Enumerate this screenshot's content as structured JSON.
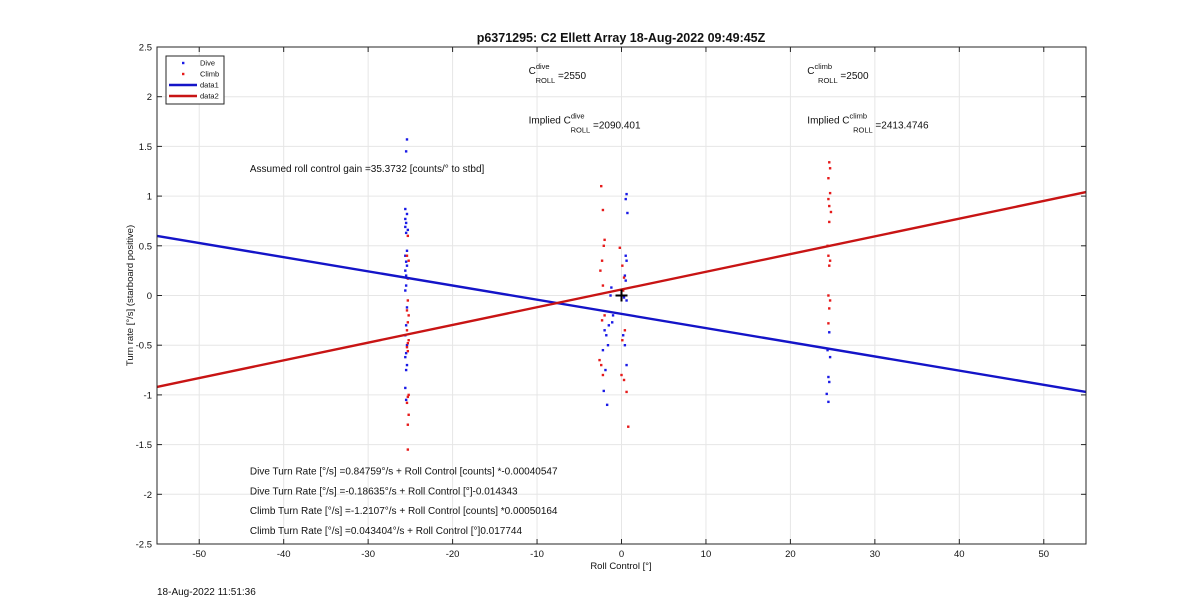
{
  "chart_data": {
    "type": "scatter",
    "title": "p6371295: C2 Ellett Array 18-Aug-2022 09:49:45Z",
    "xlabel": "Roll Control [°]",
    "ylabel": "Turn rate [°/s] (starboard positive)",
    "xlim": [
      -55,
      55
    ],
    "ylim": [
      -2.5,
      2.5
    ],
    "xticks": [
      -50,
      -40,
      -30,
      -20,
      -10,
      0,
      10,
      20,
      30,
      40,
      50
    ],
    "yticks": [
      -2.5,
      -2,
      -1.5,
      -1,
      -0.5,
      0,
      0.5,
      1,
      1.5,
      2,
      2.5
    ],
    "xtick_labels": [
      "-50",
      "-40",
      "-30",
      "-20",
      "-10",
      "0",
      "10",
      "20",
      "30",
      "40",
      "50"
    ],
    "ytick_labels": [
      "-2.5",
      "-2",
      "-1.5",
      "-1",
      "-0.5",
      "0",
      "0.5",
      "1",
      "1.5",
      "2",
      "2.5"
    ],
    "grid": true,
    "legend_position": "top-left",
    "legend": [
      {
        "label": "Dive",
        "style": "marker",
        "color": "#1a1ae6"
      },
      {
        "label": "Climb",
        "style": "marker",
        "color": "#e61a1a"
      },
      {
        "label": "data1",
        "style": "line",
        "color": "#1414c8"
      },
      {
        "label": "data2",
        "style": "line",
        "color": "#c81414"
      }
    ],
    "series": [
      {
        "name": "Dive",
        "kind": "points",
        "color": "#1a1ae6",
        "points": [
          [
            -25.4,
            1.57
          ],
          [
            -25.5,
            1.45
          ],
          [
            -25.6,
            0.87
          ],
          [
            -25.4,
            0.82
          ],
          [
            -25.6,
            0.77
          ],
          [
            -25.5,
            0.73
          ],
          [
            -25.6,
            0.69
          ],
          [
            -25.3,
            0.66
          ],
          [
            -25.5,
            0.63
          ],
          [
            -25.4,
            0.45
          ],
          [
            -25.6,
            0.4
          ],
          [
            -25.5,
            0.34
          ],
          [
            -25.4,
            0.3
          ],
          [
            -25.6,
            0.25
          ],
          [
            -25.5,
            0.2
          ],
          [
            -25.5,
            0.1
          ],
          [
            -25.6,
            0.05
          ],
          [
            -25.4,
            -0.12
          ],
          [
            -25.5,
            -0.3
          ],
          [
            -25.6,
            -0.4
          ],
          [
            -25.4,
            -0.5
          ],
          [
            -25.5,
            -0.58
          ],
          [
            -25.6,
            -0.62
          ],
          [
            -25.4,
            -0.7
          ],
          [
            -25.5,
            -0.75
          ],
          [
            -25.6,
            -0.93
          ],
          [
            -25.5,
            -1.05
          ],
          [
            0.6,
            1.02
          ],
          [
            0.5,
            0.97
          ],
          [
            0.7,
            0.83
          ],
          [
            0.5,
            0.4
          ],
          [
            0.6,
            0.35
          ],
          [
            0.4,
            0.2
          ],
          [
            0.5,
            0.15
          ],
          [
            0.3,
            -0.02
          ],
          [
            0.6,
            -0.05
          ],
          [
            -1.2,
            0.08
          ],
          [
            -1.3,
            0.0
          ],
          [
            -1.0,
            -0.2
          ],
          [
            -1.1,
            -0.27
          ],
          [
            -1.5,
            -0.3
          ],
          [
            -2.0,
            -0.35
          ],
          [
            -1.8,
            -0.4
          ],
          [
            -1.6,
            -0.5
          ],
          [
            -2.2,
            -0.55
          ],
          [
            -1.9,
            -0.75
          ],
          [
            -2.1,
            -0.96
          ],
          [
            -1.7,
            -1.1
          ],
          [
            0.2,
            -0.4
          ],
          [
            0.6,
            -0.7
          ],
          [
            0.4,
            -0.5
          ],
          [
            24.6,
            -0.37
          ],
          [
            24.4,
            -0.55
          ],
          [
            24.7,
            -0.62
          ],
          [
            24.5,
            -0.82
          ],
          [
            24.6,
            -0.87
          ],
          [
            24.3,
            -0.99
          ],
          [
            24.5,
            -1.07
          ]
        ]
      },
      {
        "name": "Climb",
        "kind": "points",
        "color": "#e61a1a",
        "points": [
          [
            -25.3,
            0.6
          ],
          [
            -25.4,
            0.4
          ],
          [
            -25.2,
            0.35
          ],
          [
            -25.3,
            0.17
          ],
          [
            -25.3,
            -0.05
          ],
          [
            -25.4,
            -0.15
          ],
          [
            -25.2,
            -0.2
          ],
          [
            -25.3,
            -0.27
          ],
          [
            -25.4,
            -0.35
          ],
          [
            -25.2,
            -0.45
          ],
          [
            -25.3,
            -0.48
          ],
          [
            -25.4,
            -0.52
          ],
          [
            -25.3,
            -0.56
          ],
          [
            -25.2,
            -1.0
          ],
          [
            -25.3,
            -1.02
          ],
          [
            -25.4,
            -1.08
          ],
          [
            -25.2,
            -1.2
          ],
          [
            -25.3,
            -1.3
          ],
          [
            -25.3,
            -1.55
          ],
          [
            -2.4,
            1.1
          ],
          [
            -2.2,
            0.86
          ],
          [
            -2.0,
            0.56
          ],
          [
            -2.1,
            0.5
          ],
          [
            -2.3,
            0.35
          ],
          [
            -2.5,
            0.25
          ],
          [
            -2.2,
            0.1
          ],
          [
            -2.0,
            -0.2
          ],
          [
            -2.3,
            -0.25
          ],
          [
            -2.6,
            -0.65
          ],
          [
            -2.4,
            -0.7
          ],
          [
            -2.2,
            -0.8
          ],
          [
            -0.2,
            0.48
          ],
          [
            0.1,
            0.3
          ],
          [
            0.3,
            0.18
          ],
          [
            0.2,
            0.05
          ],
          [
            0.4,
            -0.35
          ],
          [
            0.1,
            -0.45
          ],
          [
            0.0,
            -0.8
          ],
          [
            0.3,
            -0.85
          ],
          [
            0.6,
            -0.97
          ],
          [
            0.8,
            -1.32
          ],
          [
            24.6,
            1.34
          ],
          [
            24.7,
            1.28
          ],
          [
            24.5,
            1.18
          ],
          [
            24.7,
            1.03
          ],
          [
            24.5,
            0.97
          ],
          [
            24.6,
            0.9
          ],
          [
            24.8,
            0.84
          ],
          [
            24.6,
            0.74
          ],
          [
            24.4,
            0.5
          ],
          [
            24.5,
            0.4
          ],
          [
            24.7,
            0.35
          ],
          [
            24.6,
            0.3
          ],
          [
            24.5,
            0.0
          ],
          [
            24.7,
            -0.05
          ],
          [
            24.6,
            -0.13
          ],
          [
            24.5,
            -0.28
          ]
        ]
      },
      {
        "name": "data1",
        "kind": "line",
        "color": "#1414c8",
        "points": [
          [
            -55,
            0.6
          ],
          [
            55,
            -0.97
          ]
        ]
      },
      {
        "name": "data2",
        "kind": "line",
        "color": "#c81414",
        "points": [
          [
            -55,
            -0.92
          ],
          [
            55,
            1.04
          ]
        ]
      }
    ],
    "crosshair": [
      0,
      0
    ],
    "annotations": [
      {
        "x": -44,
        "y": 1.24,
        "parts": [
          {
            "t": "Assumed roll control gain =35.3732 [counts/° to stbd]"
          }
        ]
      },
      {
        "x": -11,
        "y": 2.23,
        "parts": [
          {
            "t": "C"
          },
          {
            "t": "dive",
            "sup": true
          },
          {
            "t": "ROLL",
            "sub": true
          },
          {
            "t": " =2550"
          }
        ]
      },
      {
        "x": 22,
        "y": 2.23,
        "parts": [
          {
            "t": "C"
          },
          {
            "t": "climb",
            "sup": true
          },
          {
            "t": "ROLL",
            "sub": true
          },
          {
            "t": " =2500"
          }
        ]
      },
      {
        "x": -11,
        "y": 1.73,
        "parts": [
          {
            "t": "Implied C"
          },
          {
            "t": "dive",
            "sup": true
          },
          {
            "t": "ROLL",
            "sub": true
          },
          {
            "t": " =2090.401"
          }
        ]
      },
      {
        "x": 22,
        "y": 1.73,
        "parts": [
          {
            "t": "Implied C"
          },
          {
            "t": "climb",
            "sup": true
          },
          {
            "t": "ROLL",
            "sub": true
          },
          {
            "t": " =2413.4746"
          }
        ]
      },
      {
        "x": -44,
        "y": -1.8,
        "parts": [
          {
            "t": "Dive Turn Rate [°/s] =0.84759°/s + Roll Control [counts] *-0.00040547"
          }
        ]
      },
      {
        "x": -44,
        "y": -2.0,
        "parts": [
          {
            "t": "Dive Turn Rate [°/s] =-0.18635°/s + Roll Control [°]-0.014343"
          }
        ]
      },
      {
        "x": -44,
        "y": -2.2,
        "parts": [
          {
            "t": "Climb Turn Rate [°/s] =-1.2107°/s + Roll Control [counts] *0.00050164"
          }
        ]
      },
      {
        "x": -44,
        "y": -2.4,
        "parts": [
          {
            "t": "Climb Turn Rate [°/s] =0.043404°/s + Roll Control [°]0.017744"
          }
        ]
      }
    ]
  },
  "footer": {
    "timestamp": "18-Aug-2022 11:51:36"
  }
}
